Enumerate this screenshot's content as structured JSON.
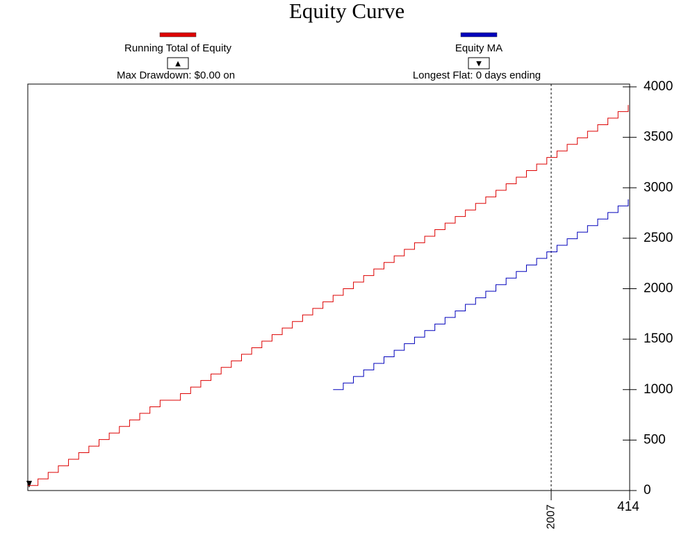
{
  "chart_data": {
    "type": "line",
    "title": "Equity Curve",
    "drawstyle": "steps-post",
    "series": [
      {
        "name": "Running Total of Equity",
        "color": "#dd0000",
        "button": "▲",
        "note": "Max Drawdown: $0.00 on",
        "x": [
          0,
          7,
          14,
          21,
          28,
          35,
          42,
          49,
          56,
          63,
          70,
          77,
          84,
          91,
          98,
          105,
          112,
          119,
          126,
          133,
          140,
          147,
          154,
          161,
          168,
          175,
          182,
          189,
          196,
          203,
          210,
          217,
          224,
          231,
          238,
          245,
          252,
          259,
          266,
          273,
          280,
          287,
          294,
          301,
          308,
          315,
          322,
          329,
          336,
          343,
          350,
          357,
          364,
          371,
          378,
          385,
          392,
          399,
          406,
          413
        ],
        "values": [
          50,
          115,
          180,
          245,
          310,
          375,
          440,
          505,
          570,
          635,
          700,
          765,
          830,
          895,
          895,
          960,
          1025,
          1090,
          1155,
          1220,
          1285,
          1350,
          1415,
          1480,
          1545,
          1610,
          1675,
          1740,
          1805,
          1870,
          1935,
          2000,
          2065,
          2130,
          2195,
          2260,
          2325,
          2390,
          2455,
          2520,
          2585,
          2650,
          2715,
          2780,
          2845,
          2910,
          2975,
          3040,
          3105,
          3170,
          3235,
          3300,
          3365,
          3430,
          3495,
          3560,
          3625,
          3690,
          3755,
          3820
        ]
      },
      {
        "name": "Equity MA",
        "color": "#0000bb",
        "button": "▼",
        "note": "Longest Flat: 0 days ending",
        "x": [
          210,
          217,
          224,
          231,
          238,
          245,
          252,
          259,
          266,
          273,
          280,
          287,
          294,
          301,
          308,
          315,
          322,
          329,
          336,
          343,
          350,
          357,
          364,
          371,
          378,
          385,
          392,
          399,
          406,
          413
        ],
        "values": [
          1000,
          1065,
          1130,
          1195,
          1260,
          1325,
          1390,
          1455,
          1520,
          1585,
          1650,
          1715,
          1780,
          1845,
          1910,
          1975,
          2040,
          2105,
          2170,
          2235,
          2300,
          2365,
          2430,
          2495,
          2560,
          2625,
          2690,
          2755,
          2820,
          2885
        ]
      }
    ],
    "xlim": [
      0,
      414
    ],
    "xticks": [
      {
        "value": 360,
        "label": "2007"
      },
      414
    ],
    "ylim": [
      0,
      4000
    ],
    "yticks": [
      0,
      500,
      1000,
      1500,
      2000,
      2500,
      3000,
      3500,
      4000
    ]
  }
}
